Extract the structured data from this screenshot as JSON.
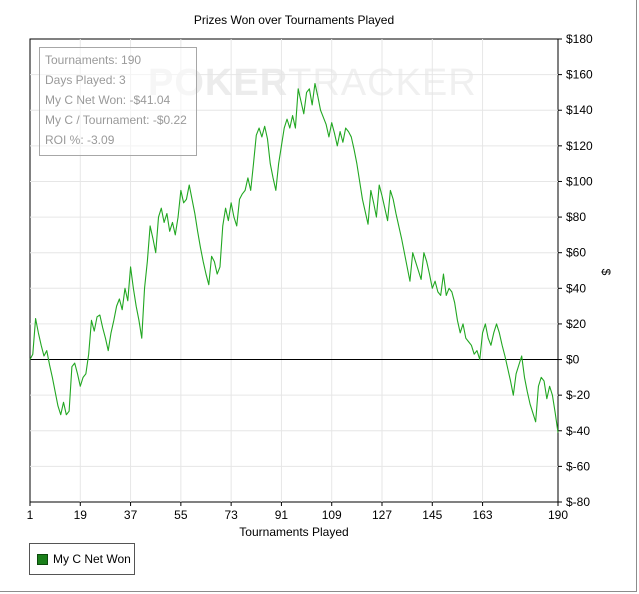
{
  "watermark": {
    "primary": "POKER",
    "secondary": "TRACKER"
  },
  "stats": [
    {
      "label": "Tournaments:",
      "value": "190"
    },
    {
      "label": "Days Played:",
      "value": "3"
    },
    {
      "label": "My C Net Won:",
      "value": "-$41.04"
    },
    {
      "label": "My C / Tournament:",
      "value": "-$0.22"
    },
    {
      "label": "ROI %:",
      "value": "-3.09"
    }
  ],
  "legend": {
    "label": "My C Net Won",
    "color": "#1a7f1a"
  },
  "chart_data": {
    "type": "line",
    "title": "Prizes Won over Tournaments Played",
    "xlabel": "Tournaments Played",
    "ylabel": "$",
    "xlim": [
      1,
      190
    ],
    "ylim": [
      -80,
      180
    ],
    "x_ticks": [
      1,
      19,
      37,
      55,
      73,
      91,
      109,
      127,
      145,
      163,
      190
    ],
    "y_ticks": [
      -80,
      -60,
      -40,
      -20,
      0,
      20,
      40,
      60,
      80,
      100,
      120,
      140,
      160,
      180
    ],
    "y_tick_labels": [
      "$-80",
      "$-60",
      "$-40",
      "$-20",
      "$0",
      "$20",
      "$40",
      "$60",
      "$80",
      "$100",
      "$120",
      "$140",
      "$160",
      "$180"
    ],
    "grid": true,
    "zero_line": true,
    "legend_position": "bottom-left",
    "series": [
      {
        "name": "My C Net Won",
        "color": "#22a722",
        "points": [
          [
            1,
            0
          ],
          [
            2,
            3
          ],
          [
            3,
            23
          ],
          [
            4,
            15
          ],
          [
            5,
            8
          ],
          [
            6,
            2
          ],
          [
            7,
            5
          ],
          [
            8,
            -3
          ],
          [
            9,
            -10
          ],
          [
            10,
            -18
          ],
          [
            11,
            -26
          ],
          [
            12,
            -31
          ],
          [
            13,
            -24
          ],
          [
            14,
            -31
          ],
          [
            15,
            -29
          ],
          [
            16,
            -4
          ],
          [
            17,
            -2
          ],
          [
            18,
            -8
          ],
          [
            19,
            -15
          ],
          [
            20,
            -10
          ],
          [
            21,
            -8
          ],
          [
            22,
            3
          ],
          [
            23,
            22
          ],
          [
            24,
            16
          ],
          [
            25,
            24
          ],
          [
            26,
            25
          ],
          [
            27,
            18
          ],
          [
            28,
            12
          ],
          [
            29,
            5
          ],
          [
            30,
            15
          ],
          [
            31,
            22
          ],
          [
            32,
            30
          ],
          [
            33,
            34
          ],
          [
            34,
            28
          ],
          [
            35,
            40
          ],
          [
            36,
            33
          ],
          [
            37,
            52
          ],
          [
            38,
            40
          ],
          [
            39,
            30
          ],
          [
            40,
            22
          ],
          [
            41,
            12
          ],
          [
            42,
            40
          ],
          [
            43,
            55
          ],
          [
            44,
            75
          ],
          [
            45,
            68
          ],
          [
            46,
            60
          ],
          [
            47,
            80
          ],
          [
            48,
            85
          ],
          [
            49,
            77
          ],
          [
            50,
            82
          ],
          [
            51,
            72
          ],
          [
            52,
            77
          ],
          [
            53,
            70
          ],
          [
            54,
            80
          ],
          [
            55,
            95
          ],
          [
            56,
            88
          ],
          [
            57,
            90
          ],
          [
            58,
            98
          ],
          [
            59,
            90
          ],
          [
            60,
            82
          ],
          [
            61,
            72
          ],
          [
            62,
            63
          ],
          [
            63,
            55
          ],
          [
            64,
            48
          ],
          [
            65,
            42
          ],
          [
            66,
            58
          ],
          [
            67,
            55
          ],
          [
            68,
            48
          ],
          [
            69,
            52
          ],
          [
            70,
            75
          ],
          [
            71,
            85
          ],
          [
            72,
            78
          ],
          [
            73,
            88
          ],
          [
            74,
            80
          ],
          [
            75,
            75
          ],
          [
            76,
            90
          ],
          [
            77,
            93
          ],
          [
            78,
            95
          ],
          [
            79,
            102
          ],
          [
            80,
            95
          ],
          [
            81,
            110
          ],
          [
            82,
            126
          ],
          [
            83,
            130
          ],
          [
            84,
            125
          ],
          [
            85,
            131
          ],
          [
            86,
            124
          ],
          [
            87,
            110
          ],
          [
            88,
            102
          ],
          [
            89,
            95
          ],
          [
            90,
            110
          ],
          [
            91,
            120
          ],
          [
            92,
            130
          ],
          [
            93,
            135
          ],
          [
            94,
            130
          ],
          [
            95,
            137
          ],
          [
            96,
            130
          ],
          [
            97,
            152
          ],
          [
            98,
            145
          ],
          [
            99,
            138
          ],
          [
            100,
            150
          ],
          [
            101,
            152
          ],
          [
            102,
            143
          ],
          [
            103,
            155
          ],
          [
            104,
            148
          ],
          [
            105,
            140
          ],
          [
            106,
            136
          ],
          [
            107,
            132
          ],
          [
            108,
            125
          ],
          [
            109,
            133
          ],
          [
            110,
            127
          ],
          [
            111,
            120
          ],
          [
            112,
            128
          ],
          [
            113,
            122
          ],
          [
            114,
            130
          ],
          [
            115,
            128
          ],
          [
            116,
            125
          ],
          [
            117,
            118
          ],
          [
            118,
            110
          ],
          [
            119,
            100
          ],
          [
            120,
            90
          ],
          [
            121,
            83
          ],
          [
            122,
            76
          ],
          [
            123,
            95
          ],
          [
            124,
            88
          ],
          [
            125,
            80
          ],
          [
            126,
            98
          ],
          [
            127,
            92
          ],
          [
            128,
            85
          ],
          [
            129,
            78
          ],
          [
            130,
            95
          ],
          [
            131,
            90
          ],
          [
            132,
            82
          ],
          [
            133,
            75
          ],
          [
            134,
            68
          ],
          [
            135,
            60
          ],
          [
            136,
            52
          ],
          [
            137,
            44
          ],
          [
            138,
            60
          ],
          [
            139,
            55
          ],
          [
            140,
            50
          ],
          [
            141,
            45
          ],
          [
            142,
            60
          ],
          [
            143,
            55
          ],
          [
            144,
            48
          ],
          [
            145,
            40
          ],
          [
            146,
            44
          ],
          [
            147,
            38
          ],
          [
            148,
            36
          ],
          [
            149,
            48
          ],
          [
            150,
            36
          ],
          [
            151,
            40
          ],
          [
            152,
            38
          ],
          [
            153,
            32
          ],
          [
            154,
            22
          ],
          [
            155,
            15
          ],
          [
            156,
            20
          ],
          [
            157,
            12
          ],
          [
            158,
            10
          ],
          [
            159,
            8
          ],
          [
            160,
            3
          ],
          [
            161,
            5
          ],
          [
            162,
            0
          ],
          [
            163,
            15
          ],
          [
            164,
            20
          ],
          [
            165,
            12
          ],
          [
            166,
            8
          ],
          [
            167,
            15
          ],
          [
            168,
            20
          ],
          [
            169,
            15
          ],
          [
            170,
            8
          ],
          [
            171,
            2
          ],
          [
            172,
            -5
          ],
          [
            173,
            -12
          ],
          [
            174,
            -20
          ],
          [
            175,
            -8
          ],
          [
            176,
            -3
          ],
          [
            177,
            2
          ],
          [
            178,
            -10
          ],
          [
            179,
            -18
          ],
          [
            180,
            -25
          ],
          [
            181,
            -30
          ],
          [
            182,
            -35
          ],
          [
            183,
            -15
          ],
          [
            184,
            -10
          ],
          [
            185,
            -12
          ],
          [
            186,
            -22
          ],
          [
            187,
            -15
          ],
          [
            188,
            -20
          ],
          [
            189,
            -30
          ],
          [
            190,
            -41
          ]
        ]
      }
    ]
  }
}
